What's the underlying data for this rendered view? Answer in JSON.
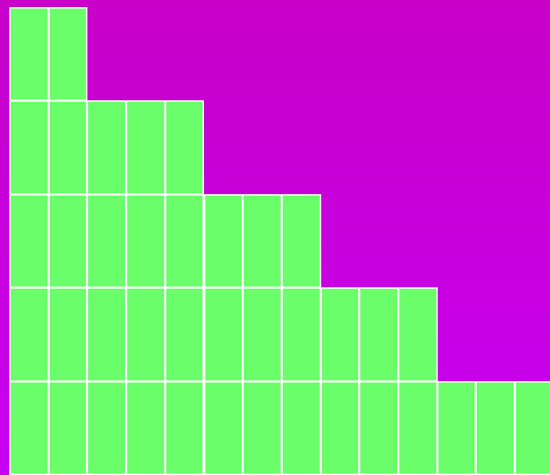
{
  "colors": {
    "background_top": "#c800c8",
    "background_bottom": "#c800f2",
    "block_fill": "#6aff6a",
    "block_border": "#ffffff"
  },
  "board": {
    "rows": [
      {
        "blocks": 2
      },
      {
        "blocks": 5
      },
      {
        "blocks": 8
      },
      {
        "blocks": 11
      },
      {
        "blocks": 14
      }
    ]
  }
}
